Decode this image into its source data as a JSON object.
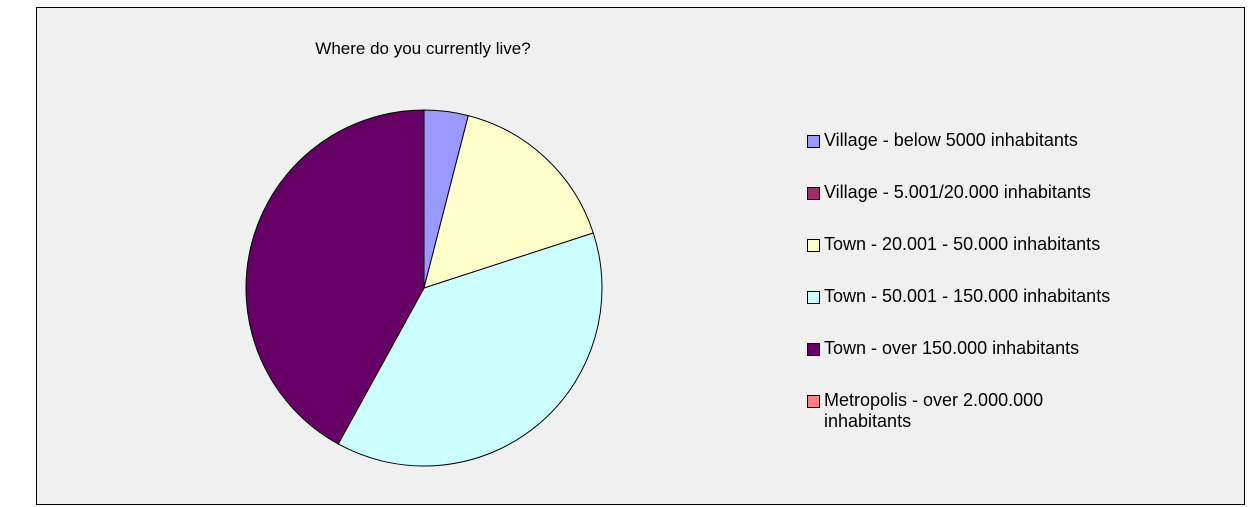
{
  "chart_data": {
    "type": "pie",
    "title": "Where do you currently live?",
    "legend_position": "right",
    "slices": [
      {
        "label": "Village - below 5000 inhabitants",
        "value": 4,
        "color": "#9999ff"
      },
      {
        "label": "Village - 5.001/20.000 inhabitants",
        "value": 0,
        "color": "#993366"
      },
      {
        "label": "Town - 20.001 - 50.000 inhabitants",
        "value": 16,
        "color": "#ffffcc"
      },
      {
        "label": "Town - 50.001 - 150.000 inhabitants",
        "value": 38,
        "color": "#ccffff"
      },
      {
        "label": "Town - over 150.000 inhabitants",
        "value": 42,
        "color": "#660066"
      },
      {
        "label": "Metropolis - over 2.000.000 inhabitants",
        "value": 0,
        "color": "#ff8080"
      }
    ]
  }
}
